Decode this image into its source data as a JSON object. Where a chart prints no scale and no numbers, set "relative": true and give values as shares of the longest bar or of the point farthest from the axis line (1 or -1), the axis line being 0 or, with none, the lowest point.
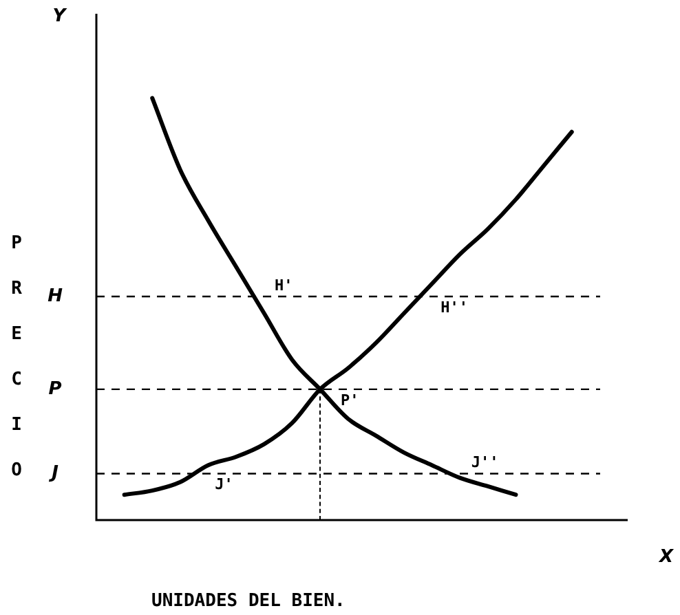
{
  "chart_data": {
    "type": "line",
    "relative": true,
    "xlabel": "UNIDADES DEL BIEN.",
    "ylabel": "PRECIO",
    "categories": [
      null,
      null,
      null,
      null,
      null,
      null,
      null,
      null,
      null,
      null,
      null,
      null,
      null,
      null,
      null,
      null,
      null,
      null,
      null,
      null
    ],
    "series": [
      {
        "color": "#000000",
        "values": [
          null,
          null,
          1.0,
          0.83,
          0.71,
          0.6,
          0.49,
          0.38,
          0.31,
          0.24,
          0.2,
          0.16,
          0.13,
          0.1,
          0.08,
          0.06,
          null,
          null,
          null,
          null
        ]
      },
      {
        "color": "#000000",
        "values": [
          null,
          0.06,
          0.07,
          0.09,
          0.13,
          0.15,
          0.18,
          0.23,
          0.31,
          0.36,
          0.42,
          0.49,
          0.56,
          0.63,
          0.69,
          0.76,
          0.84,
          0.92,
          null,
          null
        ]
      }
    ],
    "ref_lines": [
      {
        "axis": "y",
        "value": 0.53,
        "label": "H",
        "color": "#000000",
        "line_style": "dashed"
      },
      {
        "axis": "y",
        "value": 0.31,
        "label": "P",
        "color": "#000000",
        "line_style": "dashed"
      },
      {
        "axis": "y",
        "value": 0.11,
        "label": "J",
        "color": "#000000",
        "line_style": "dashed"
      }
    ],
    "annotations": [
      "Y",
      "X",
      {
        "text": "H'",
        "y": 0.53
      },
      {
        "text": "H''",
        "y": 0.53
      },
      {
        "text": "P'",
        "y": 0.31
      },
      {
        "text": "J'",
        "y": 0.11
      },
      {
        "text": "J''",
        "y": 0.11
      }
    ],
    "legend": false,
    "marker": "none",
    "line_style": "solid"
  }
}
